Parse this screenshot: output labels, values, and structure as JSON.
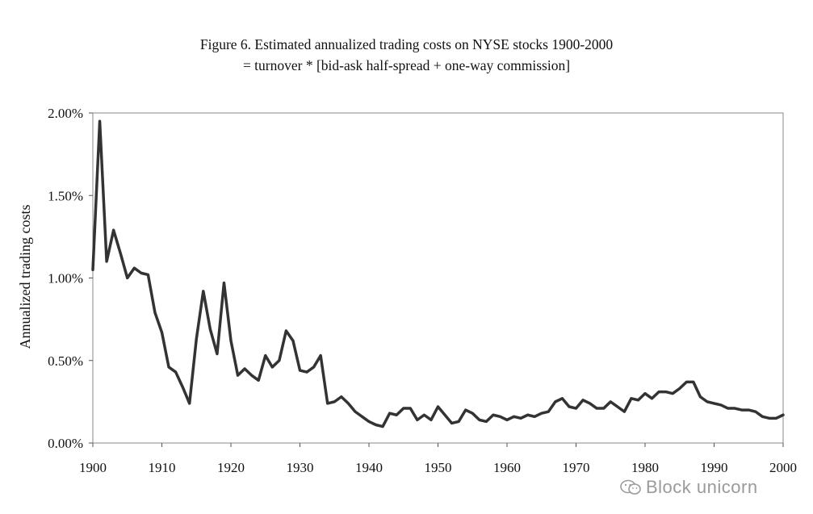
{
  "chart_data": {
    "type": "line",
    "title": "Figure 6.  Estimated annualized trading costs on NYSE stocks 1900-2000",
    "subtitle": "= turnover * [bid-ask half-spread + one-way commission]",
    "xlabel": "",
    "ylabel": "Annualized trading costs",
    "xlim": [
      1900,
      2000
    ],
    "ylim": [
      0,
      2.0
    ],
    "x_ticks": [
      "1900",
      "1910",
      "1920",
      "1930",
      "1940",
      "1950",
      "1960",
      "1970",
      "1980",
      "1990",
      "2000"
    ],
    "y_ticks": [
      "0.00%",
      "0.50%",
      "1.00%",
      "1.50%",
      "2.00%"
    ],
    "y_tick_values": [
      0,
      0.5,
      1.0,
      1.5,
      2.0
    ],
    "x_tick_values": [
      1900,
      1910,
      1920,
      1930,
      1940,
      1950,
      1960,
      1970,
      1980,
      1990,
      2000
    ],
    "grid": false,
    "line_color": "#333333",
    "series": [
      {
        "x": [
          1900,
          1901,
          1902,
          1903,
          1904,
          1905,
          1906,
          1907,
          1908,
          1909,
          1910,
          1911,
          1912,
          1913,
          1914,
          1915,
          1916,
          1917,
          1918,
          1919,
          1920,
          1921,
          1922,
          1923,
          1924,
          1925,
          1926,
          1927,
          1928,
          1929,
          1930,
          1931,
          1932,
          1933,
          1934,
          1935,
          1936,
          1937,
          1938,
          1939,
          1940,
          1941,
          1942,
          1943,
          1944,
          1945,
          1946,
          1947,
          1948,
          1949,
          1950,
          1951,
          1952,
          1953,
          1954,
          1955,
          1956,
          1957,
          1958,
          1959,
          1960,
          1961,
          1962,
          1963,
          1964,
          1965,
          1966,
          1967,
          1968,
          1969,
          1970,
          1971,
          1972,
          1973,
          1974,
          1975,
          1976,
          1977,
          1978,
          1979,
          1980,
          1981,
          1982,
          1983,
          1984,
          1985,
          1986,
          1987,
          1988,
          1989,
          1990,
          1991,
          1992,
          1993,
          1994,
          1995,
          1996,
          1997,
          1998,
          1999,
          2000
        ],
        "values": [
          1.05,
          1.95,
          1.1,
          1.29,
          1.15,
          1.0,
          1.06,
          1.03,
          1.02,
          0.79,
          0.67,
          0.46,
          0.43,
          0.34,
          0.24,
          0.63,
          0.92,
          0.69,
          0.54,
          0.97,
          0.62,
          0.41,
          0.45,
          0.41,
          0.38,
          0.53,
          0.46,
          0.5,
          0.68,
          0.62,
          0.44,
          0.43,
          0.46,
          0.53,
          0.24,
          0.25,
          0.28,
          0.24,
          0.19,
          0.16,
          0.13,
          0.11,
          0.1,
          0.18,
          0.17,
          0.21,
          0.21,
          0.14,
          0.17,
          0.14,
          0.22,
          0.17,
          0.12,
          0.13,
          0.2,
          0.18,
          0.14,
          0.13,
          0.17,
          0.16,
          0.14,
          0.16,
          0.15,
          0.17,
          0.16,
          0.18,
          0.19,
          0.25,
          0.27,
          0.22,
          0.21,
          0.26,
          0.24,
          0.21,
          0.21,
          0.25,
          0.22,
          0.19,
          0.27,
          0.26,
          0.3,
          0.27,
          0.31,
          0.31,
          0.3,
          0.33,
          0.37,
          0.37,
          0.28,
          0.25,
          0.24,
          0.23,
          0.21,
          0.21,
          0.2,
          0.2,
          0.19,
          0.16,
          0.15,
          0.15,
          0.17
        ]
      }
    ]
  },
  "watermark": {
    "text": "Block unicorn",
    "icon": "wechat-icon"
  }
}
